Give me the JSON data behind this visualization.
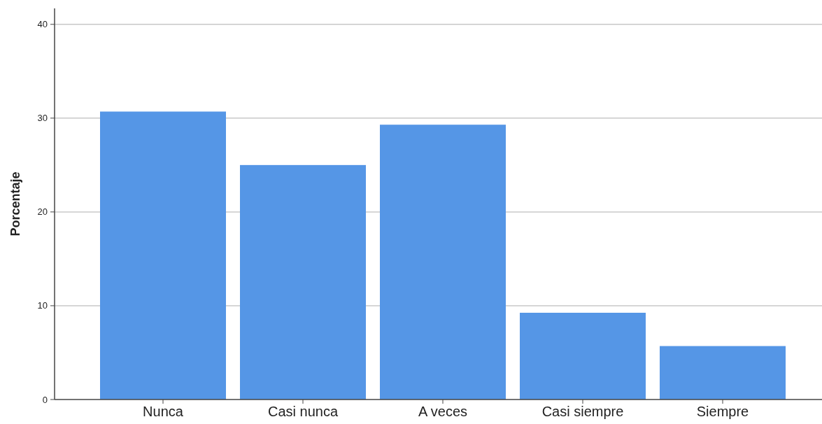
{
  "chart_data": {
    "type": "bar",
    "ylabel": "Porcentaje",
    "categories": [
      "Nunca",
      "Casi nunca",
      "A veces",
      "Casi siempre",
      "Siempre"
    ],
    "values": [
      30.7,
      25.0,
      29.3,
      9.25,
      5.7
    ],
    "color": "#5596e6",
    "ylim": [
      0,
      41.7
    ],
    "yticks": [
      0,
      10,
      20,
      30,
      40
    ],
    "grid": "y"
  }
}
